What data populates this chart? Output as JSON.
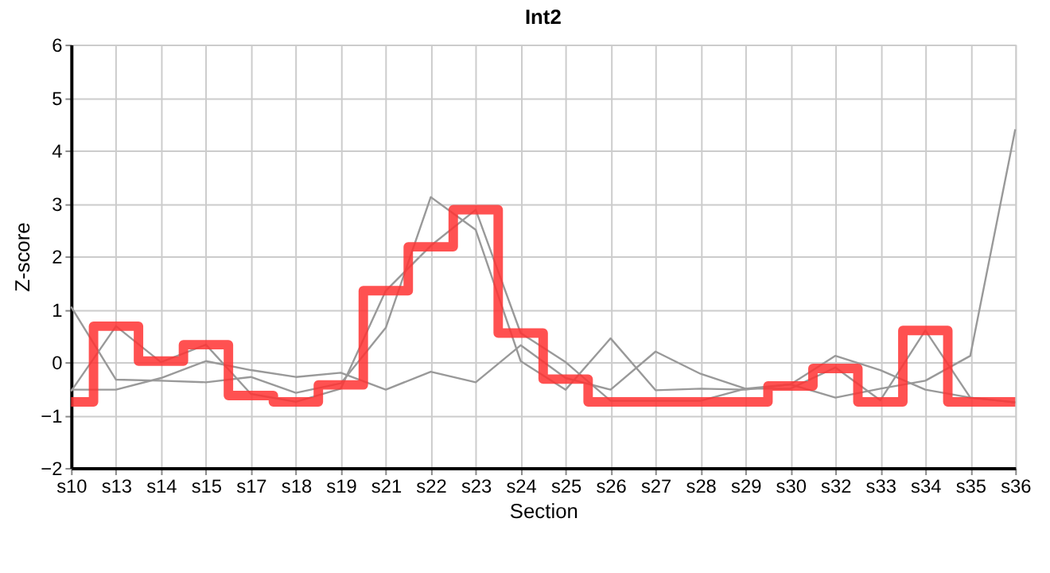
{
  "chart_data": {
    "type": "line",
    "title": "Int2",
    "xlabel": "Section",
    "ylabel": "Z-score",
    "categories": [
      "s10",
      "s13",
      "s14",
      "s15",
      "s17",
      "s18",
      "s19",
      "s21",
      "s22",
      "s23",
      "s24",
      "s25",
      "s26",
      "s27",
      "s28",
      "s29",
      "s30",
      "s32",
      "s33",
      "s34",
      "s35",
      "s36"
    ],
    "series": [
      {
        "color": "#999999",
        "values": [
          1.05,
          -0.33,
          -0.35,
          -0.38,
          -0.28,
          -0.58,
          -0.4,
          0.65,
          3.12,
          2.5,
          0.02,
          -0.52,
          0.45,
          -0.53,
          -0.5,
          -0.52,
          -0.42,
          -0.67,
          -0.5,
          -0.35,
          0.12,
          4.4
        ]
      },
      {
        "color": "#999999",
        "values": [
          -0.55,
          0.68,
          0.0,
          0.33,
          -0.6,
          -0.75,
          -0.5,
          1.35,
          2.2,
          2.88,
          0.55,
          0.0,
          -0.73,
          -0.73,
          -0.73,
          -0.5,
          -0.5,
          -0.1,
          -0.72,
          0.6,
          -0.67,
          -0.76
        ]
      },
      {
        "color": "#999999",
        "values": [
          -0.52,
          -0.52,
          -0.3,
          0.02,
          -0.15,
          -0.28,
          -0.2,
          -0.52,
          -0.18,
          -0.38,
          0.32,
          -0.3,
          -0.52,
          0.2,
          -0.22,
          -0.5,
          -0.42,
          0.12,
          -0.15,
          -0.52,
          -0.67,
          -0.76
        ]
      },
      {
        "type": "step",
        "color": "#ff3333",
        "values": [
          -0.75,
          0.68,
          0.02,
          0.33,
          -0.63,
          -0.75,
          -0.43,
          1.35,
          2.18,
          2.88,
          0.55,
          -0.32,
          -0.75,
          -0.75,
          -0.75,
          -0.75,
          -0.45,
          -0.12,
          -0.75,
          0.6,
          -0.75,
          -0.75
        ]
      }
    ],
    "ylim": [
      -2,
      6
    ],
    "yticks": [
      -2,
      -1,
      0,
      1,
      2,
      3,
      4,
      5,
      6
    ],
    "grid": true
  }
}
